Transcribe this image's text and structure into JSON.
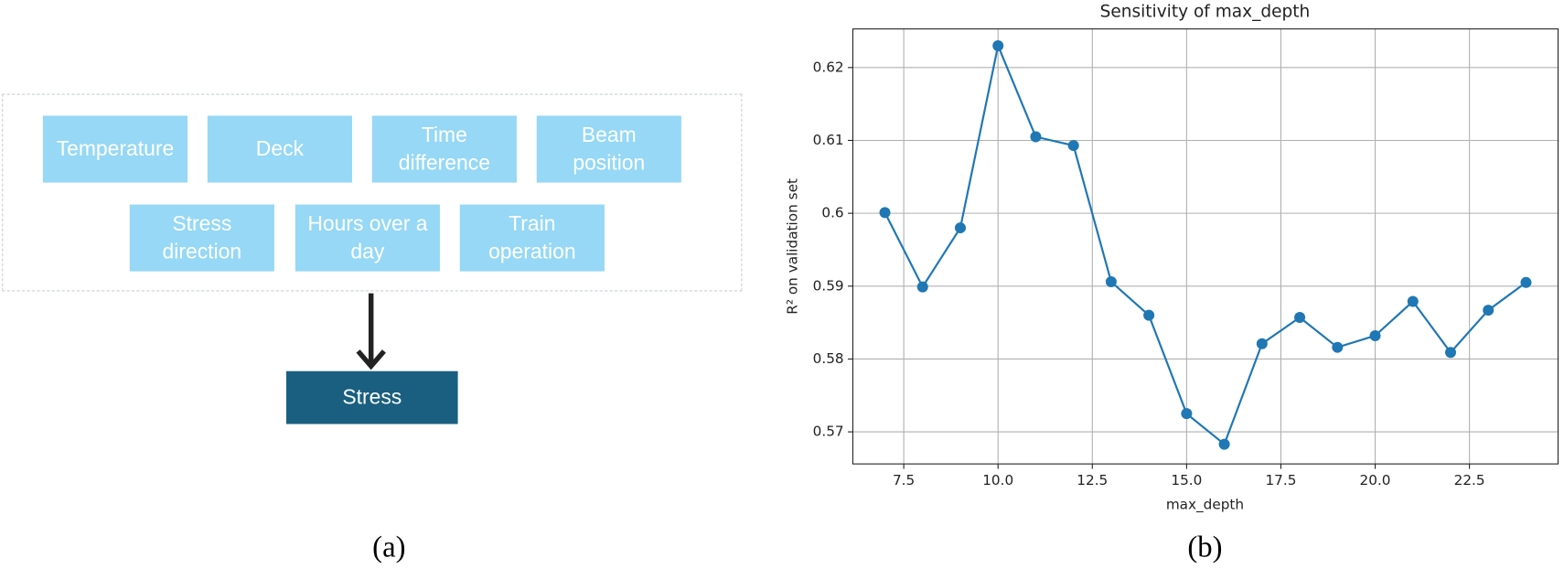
{
  "diagram": {
    "inputs": [
      "Temperature",
      "Deck",
      "Time difference",
      "Beam position",
      "Stress direction",
      "Hours over a day",
      "Train operation"
    ],
    "output": "Stress",
    "caption": "(a)"
  },
  "chart_data": {
    "type": "line",
    "title": "Sensitivity of max_depth",
    "x_label": "max_depth",
    "y_label": "R² on validation set",
    "caption": "(b)",
    "x": [
      7,
      8,
      9,
      10,
      11,
      12,
      13,
      14,
      15,
      16,
      17,
      18,
      19,
      20,
      21,
      22,
      23,
      24
    ],
    "values": [
      0.6001,
      0.5899,
      0.598,
      0.623,
      0.6105,
      0.6093,
      0.5906,
      0.586,
      0.5725,
      0.5683,
      0.5821,
      0.5857,
      0.5816,
      0.5832,
      0.5879,
      0.5809,
      0.5867,
      0.5905
    ],
    "color": "#1f77b4",
    "xlim": [
      6.15,
      24.85
    ],
    "ylim": [
      0.5656,
      0.6253
    ],
    "xticks": [
      7.5,
      {
        "value": 10,
        "label": "10.0"
      },
      12.5,
      {
        "value": 15,
        "label": "15.0"
      },
      17.5,
      {
        "value": 20,
        "label": "20.0"
      },
      22.5
    ],
    "yticks": [
      0.57,
      0.58,
      0.59,
      0.6,
      0.61,
      0.62
    ],
    "grid": true
  }
}
